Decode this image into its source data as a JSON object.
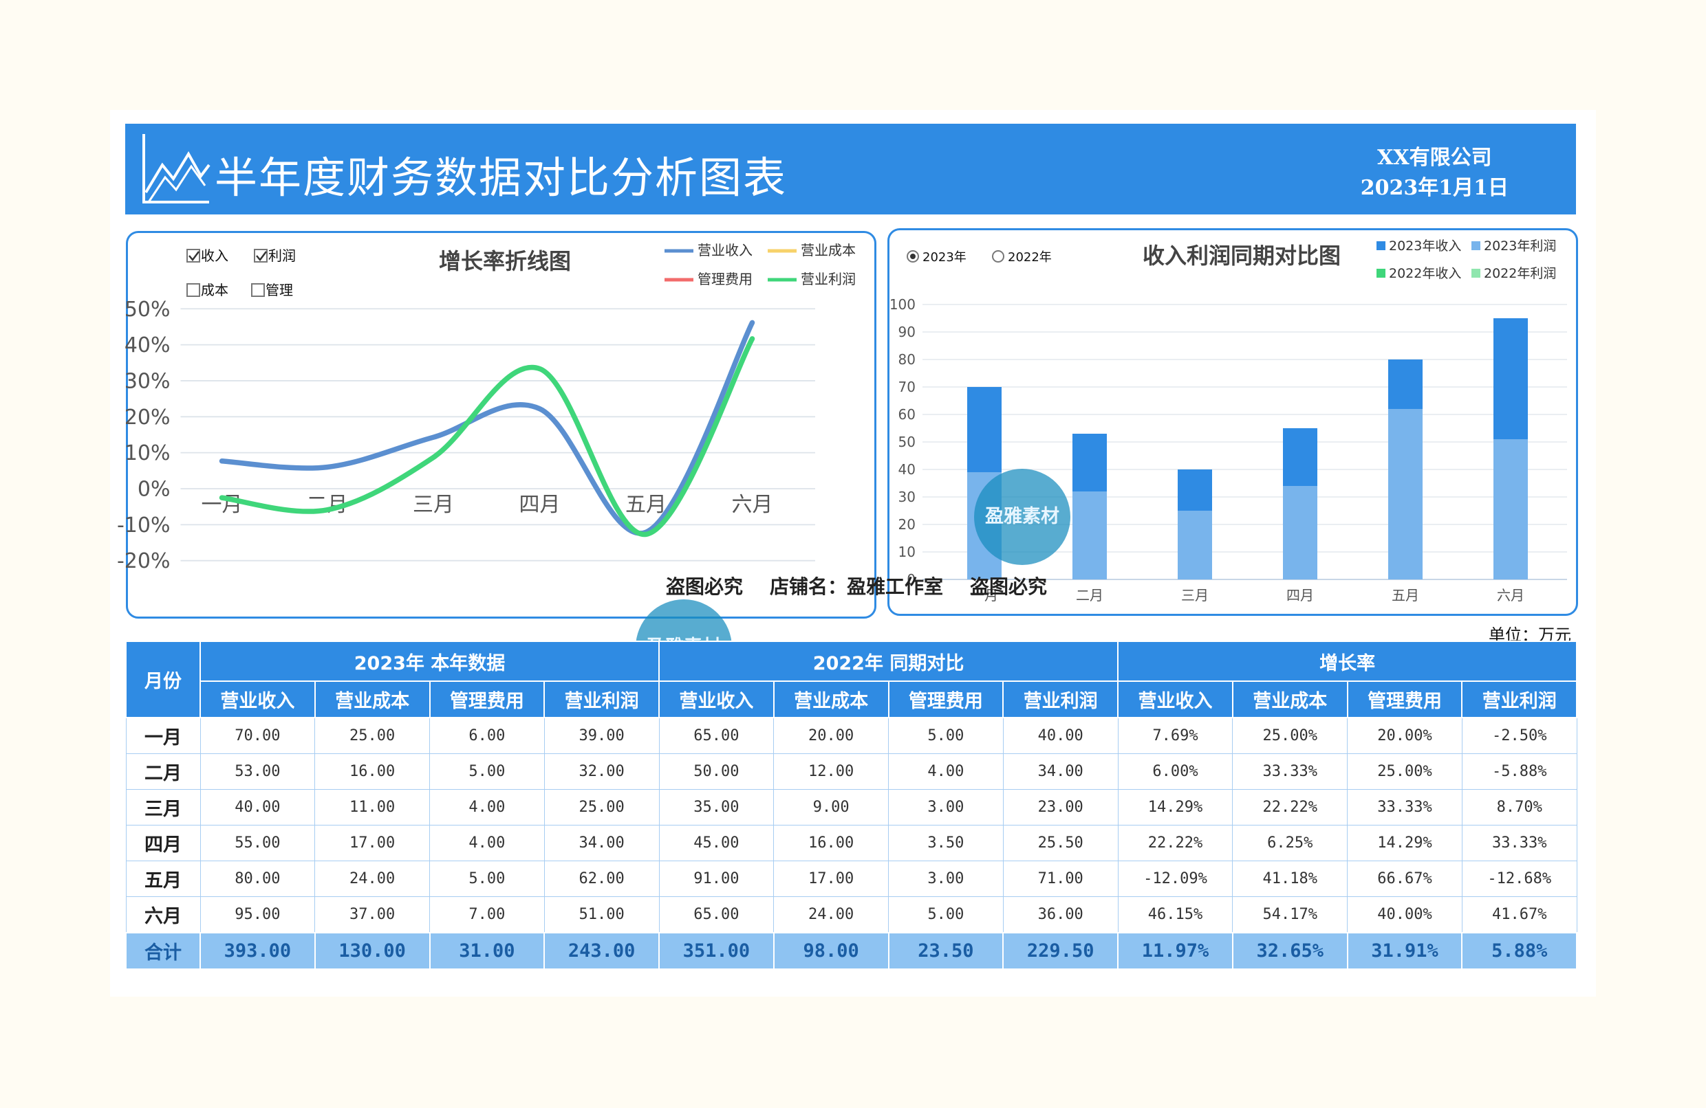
{
  "header": {
    "title": "半年度财务数据对比分析图表",
    "company": "XX有限公司",
    "date": "2023年1月1日"
  },
  "colors": {
    "accent": "#2f8be3",
    "revenue": "#5b8fd0",
    "cost": "#f7d26a",
    "expense": "#f26b6b",
    "profit": "#3fd67a",
    "bar2023_rev": "#2f8be3",
    "bar2023_profit": "#78b4ec"
  },
  "line_panel": {
    "checkboxes": [
      {
        "label": "收入",
        "checked": true
      },
      {
        "label": "利润",
        "checked": true
      },
      {
        "label": "成本",
        "checked": false
      },
      {
        "label": "管理",
        "checked": false
      }
    ]
  },
  "bar_panel": {
    "radios": [
      {
        "label": "2023年",
        "checked": true
      },
      {
        "label": "2022年",
        "checked": false
      }
    ]
  },
  "watermark": {
    "line": "盗图必究    店铺名：盈雅工作室    盗图必究",
    "badge": "盈雅素材"
  },
  "chart_data": [
    {
      "type": "line",
      "title": "增长率折线图",
      "categories": [
        "一月",
        "二月",
        "三月",
        "四月",
        "五月",
        "六月"
      ],
      "yticks": [
        "50%",
        "40%",
        "30%",
        "20%",
        "10%",
        "0%",
        "-10%",
        "-20%"
      ],
      "ylim": [
        -20,
        50
      ],
      "legend": [
        "营业收入",
        "营业成本",
        "管理费用",
        "营业利润"
      ],
      "series": [
        {
          "name": "营业收入",
          "values": [
            7.69,
            6.0,
            14.29,
            22.22,
            -12.09,
            46.15
          ]
        },
        {
          "name": "营业利润",
          "values": [
            -2.5,
            -5.88,
            8.7,
            33.33,
            -12.68,
            41.67
          ]
        }
      ],
      "grid": true,
      "legend_position": "top-right"
    },
    {
      "type": "bar",
      "title": "收入利润同期对比图",
      "categories": [
        "一月",
        "二月",
        "三月",
        "四月",
        "五月",
        "六月"
      ],
      "yticks": [
        "100",
        "90",
        "80",
        "70",
        "60",
        "50",
        "40",
        "30",
        "20",
        "10",
        "0"
      ],
      "ylim": [
        0,
        100
      ],
      "legend": [
        "2023年收入",
        "2023年利润",
        "2022年收入",
        "2022年利润"
      ],
      "series": [
        {
          "name": "2023年收入",
          "values": [
            70,
            53,
            40,
            55,
            80,
            95
          ]
        },
        {
          "name": "2023年利润",
          "values": [
            39,
            32,
            25,
            34,
            62,
            51
          ]
        }
      ],
      "grid": true,
      "legend_position": "top-right"
    }
  ],
  "table": {
    "unit": "单位：万元",
    "month_header": "月份",
    "groups": [
      "2023年    本年数据",
      "2022年  同期对比",
      "增长率"
    ],
    "columns": [
      "营业收入",
      "营业成本",
      "管理费用",
      "营业利润",
      "营业收入",
      "营业成本",
      "管理费用",
      "营业利润",
      "营业收入",
      "营业成本",
      "管理费用",
      "营业利润"
    ],
    "rows": [
      {
        "month": "一月",
        "cells": [
          "70.00",
          "25.00",
          "6.00",
          "39.00",
          "65.00",
          "20.00",
          "5.00",
          "40.00",
          "7.69%",
          "25.00%",
          "20.00%",
          "-2.50%"
        ]
      },
      {
        "month": "二月",
        "cells": [
          "53.00",
          "16.00",
          "5.00",
          "32.00",
          "50.00",
          "12.00",
          "4.00",
          "34.00",
          "6.00%",
          "33.33%",
          "25.00%",
          "-5.88%"
        ]
      },
      {
        "month": "三月",
        "cells": [
          "40.00",
          "11.00",
          "4.00",
          "25.00",
          "35.00",
          "9.00",
          "3.00",
          "23.00",
          "14.29%",
          "22.22%",
          "33.33%",
          "8.70%"
        ]
      },
      {
        "month": "四月",
        "cells": [
          "55.00",
          "17.00",
          "4.00",
          "34.00",
          "45.00",
          "16.00",
          "3.50",
          "25.50",
          "22.22%",
          "6.25%",
          "14.29%",
          "33.33%"
        ]
      },
      {
        "month": "五月",
        "cells": [
          "80.00",
          "24.00",
          "5.00",
          "62.00",
          "91.00",
          "17.00",
          "3.00",
          "71.00",
          "-12.09%",
          "41.18%",
          "66.67%",
          "-12.68%"
        ]
      },
      {
        "month": "六月",
        "cells": [
          "95.00",
          "37.00",
          "7.00",
          "51.00",
          "65.00",
          "24.00",
          "5.00",
          "36.00",
          "46.15%",
          "54.17%",
          "40.00%",
          "41.67%"
        ]
      }
    ],
    "total": {
      "month": "合计",
      "cells": [
        "393.00",
        "130.00",
        "31.00",
        "243.00",
        "351.00",
        "98.00",
        "23.50",
        "229.50",
        "11.97%",
        "32.65%",
        "31.91%",
        "5.88%"
      ]
    }
  }
}
